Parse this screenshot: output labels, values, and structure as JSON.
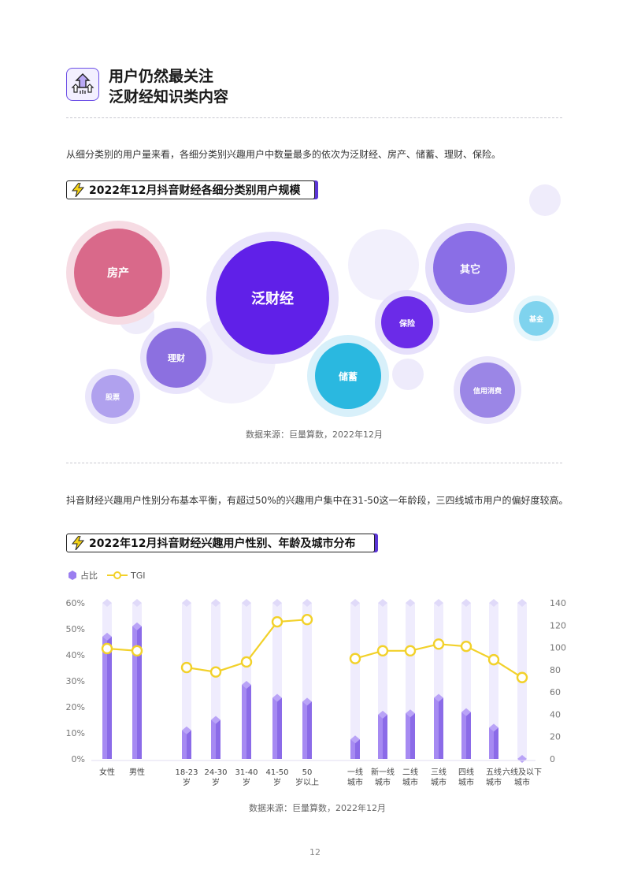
{
  "header": {
    "line1": "用户仍然最关注",
    "line2": "泛财经知识类内容"
  },
  "intro1": "从细分类别的用户量来看，各细分类别兴趣用户中数量最多的依次为泛财经、房产、储蓄、理财、保险。",
  "section1": {
    "title": "2022年12月抖音财经各细分类别用户规模"
  },
  "bubbles": [
    {
      "label": "房产",
      "color": "#d9698a"
    },
    {
      "label": "泛财经",
      "color": "#6020e8"
    },
    {
      "label": "其它",
      "color": "#8a6ee6"
    },
    {
      "label": "理财",
      "color": "#8c70e0"
    },
    {
      "label": "保险",
      "color": "#6b2be8"
    },
    {
      "label": "储蓄",
      "color": "#2ab8e0"
    },
    {
      "label": "基金",
      "color": "#7fd3ee"
    },
    {
      "label": "股票",
      "color": "#b0a1ee"
    },
    {
      "label": "信用消费",
      "color": "#9b86e6"
    }
  ],
  "source1": "数据来源：巨量算数，2022年12月",
  "intro2": "抖音财经兴趣用户性别分布基本平衡，有超过50%的兴趣用户集中在31-50这一年龄段，三四线城市用户的偏好度较高。",
  "section2": {
    "title": "2022年12月抖音财经兴趣用户性别、年龄及城市分布"
  },
  "legend": {
    "share": "占比",
    "tgi": "TGI"
  },
  "chart_data": {
    "type": "bar",
    "categories": [
      [
        "女性"
      ],
      [
        "男性"
      ],
      [
        "18-23",
        "岁"
      ],
      [
        "24-30",
        "岁"
      ],
      [
        "31-40",
        "岁"
      ],
      [
        "41-50",
        "岁"
      ],
      [
        "50",
        "岁以上"
      ],
      [
        "一线",
        "城市"
      ],
      [
        "新一线",
        "城市"
      ],
      [
        "二线",
        "城市"
      ],
      [
        "三线",
        "城市"
      ],
      [
        "四线",
        "城市"
      ],
      [
        "五线",
        "城市"
      ],
      [
        "六线及以下",
        "城市"
      ]
    ],
    "series": [
      {
        "name": "占比",
        "type": "bar",
        "axis": "left",
        "values": [
          47,
          51,
          11,
          15,
          28.5,
          23.5,
          22,
          7.5,
          17,
          17.5,
          23.5,
          18,
          12,
          0
        ],
        "color": "#9b7ef0"
      },
      {
        "name": "TGI",
        "type": "line",
        "axis": "right",
        "values": [
          99,
          97,
          82,
          78,
          87,
          123,
          125,
          90,
          97,
          97,
          103,
          101,
          89,
          73
        ],
        "color": "#f2d12a"
      }
    ],
    "ylim_left": [
      0,
      60
    ],
    "yticks_left": [
      "0%",
      "10%",
      "20%",
      "30%",
      "40%",
      "50%",
      "60%"
    ],
    "ylim_right": [
      0,
      140
    ],
    "yticks_right": [
      "0",
      "20",
      "40",
      "60",
      "80",
      "100",
      "120",
      "140"
    ],
    "groups": [
      [
        0,
        1
      ],
      [
        2,
        3,
        4,
        5,
        6
      ],
      [
        7,
        8,
        9,
        10,
        11,
        12,
        13
      ]
    ]
  },
  "source2": "数据来源：巨量算数，2022年12月",
  "page_number": "12"
}
